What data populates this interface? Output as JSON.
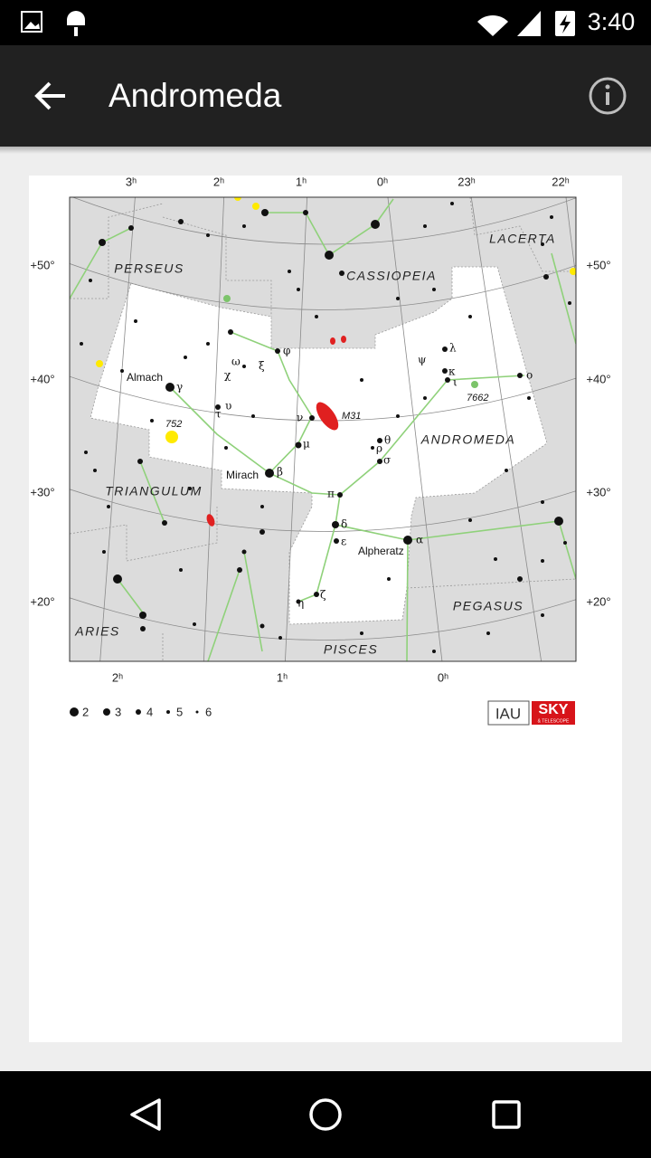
{
  "status_bar": {
    "time": "3:40"
  },
  "app_bar": {
    "title": "Andromeda"
  },
  "map": {
    "ra_top": [
      "3ʰ",
      "2ʰ",
      "1ʰ",
      "0ʰ",
      "23ʰ",
      "22ʰ"
    ],
    "ra_bottom": [
      "2ʰ",
      "1ʰ",
      "0ʰ"
    ],
    "dec_left": [
      "+50°",
      "+40°",
      "+30°",
      "+20°"
    ],
    "dec_right": [
      "+50°",
      "+40°",
      "+30°",
      "+20°"
    ],
    "constellations": [
      "PERSEUS",
      "CASSIOPEIA",
      "LACERTA",
      "ANDROMEDA",
      "TRIANGULUM",
      "ARIES",
      "PISCES",
      "PEGASUS"
    ],
    "star_names": [
      "Almach",
      "Mirach",
      "Alpheratz"
    ],
    "objects": [
      "M31",
      "752",
      "7662"
    ],
    "greek": [
      "φ",
      "ω",
      "ξ",
      "χ",
      "γ",
      "υ",
      "τ",
      "ν",
      "μ",
      "θ",
      "ρ",
      "σ",
      "β",
      "π",
      "δ",
      "ε",
      "α",
      "η",
      "ζ",
      "λ",
      "ψ",
      "κ",
      "ι",
      "ο"
    ],
    "legend": [
      "2",
      "3",
      "4",
      "5",
      "6"
    ],
    "logos": {
      "iau": "IAU",
      "sky": "SKY",
      "sky_sub": "& TELESCOPE"
    }
  }
}
